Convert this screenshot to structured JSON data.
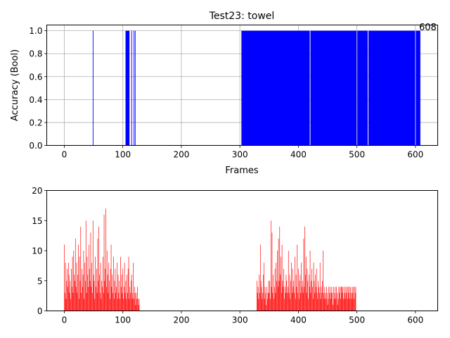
{
  "chart_data": [
    {
      "type": "bar",
      "title": "Test23: towel",
      "xlabel": "Frames",
      "ylabel": "Accuracy (Bool)",
      "xlim": [
        -30,
        638
      ],
      "ylim": [
        0,
        1.05
      ],
      "xticks": [
        0,
        100,
        200,
        300,
        400,
        500,
        600
      ],
      "yticks": [
        0.0,
        0.2,
        0.4,
        0.6,
        0.8,
        1.0
      ],
      "grid": true,
      "color": "#0000ff",
      "annotation": "608",
      "annotation_x": 608,
      "series": [
        {
          "comment": "frames where accuracy = 1 (all others are 0)",
          "ranges": [
            [
              49,
              49
            ],
            [
              105,
              111
            ],
            [
              115,
              115
            ],
            [
              119,
              119
            ],
            [
              121,
              121
            ],
            [
              303,
              419
            ],
            [
              421,
              499
            ],
            [
              501,
              518
            ],
            [
              520,
              599
            ],
            [
              601,
              608
            ]
          ]
        }
      ]
    },
    {
      "type": "bar",
      "title": "",
      "xlabel": "",
      "ylabel": "",
      "xlim": [
        -30,
        638
      ],
      "ylim": [
        0,
        20
      ],
      "xticks": [
        0,
        100,
        200,
        300,
        400,
        500,
        600
      ],
      "yticks": [
        0,
        5,
        10,
        15,
        20
      ],
      "grid": false,
      "color": "#ff0000",
      "series": [
        {
          "segments": [
            {
              "x0": 0,
              "values": [
                11,
                3,
                8,
                2,
                5,
                7,
                4,
                8,
                6,
                3,
                5,
                2,
                7,
                4,
                9,
                3,
                10,
                6,
                5,
                12,
                4,
                8,
                3,
                6,
                11,
                2,
                9,
                5,
                14,
                3,
                7,
                4,
                6,
                10,
                2,
                8,
                5,
                15,
                3,
                9,
                6,
                4,
                11,
                7,
                5,
                13,
                4,
                8,
                3,
                15,
                6,
                5,
                2,
                9,
                4,
                7,
                3,
                12,
                5,
                14,
                6,
                3,
                8,
                2,
                5,
                4,
                9,
                3,
                16,
                5,
                7,
                17,
                4,
                10,
                6,
                3,
                8,
                5,
                2,
                7,
                11,
                4,
                6,
                3,
                9,
                2,
                5,
                7,
                3,
                4,
                8,
                2,
                6,
                3,
                5,
                2,
                9,
                4,
                6,
                3,
                7,
                2,
                4,
                8,
                3,
                5,
                2,
                6,
                3,
                7,
                9,
                2,
                4,
                3,
                5,
                6,
                2,
                3,
                8,
                2,
                4,
                3,
                1,
                3,
                2,
                4,
                2,
                1,
                2
              ]
            },
            {
              "x0": 329,
              "values": [
                5,
                3,
                4,
                2,
                6,
                3,
                11,
                5,
                4,
                2,
                3,
                6,
                8,
                2,
                4,
                3,
                1,
                4,
                2,
                3,
                5,
                3,
                5,
                2,
                15,
                4,
                13,
                3,
                6,
                2,
                4,
                7,
                3,
                8,
                5,
                10,
                4,
                12,
                5,
                14,
                6,
                9,
                3,
                11,
                5,
                4,
                7,
                2,
                4,
                3,
                6,
                5,
                3,
                4,
                10,
                3,
                6,
                2,
                5,
                8,
                3,
                7,
                4,
                5,
                3,
                9,
                2,
                6,
                4,
                11,
                3,
                7,
                2,
                5,
                6,
                3,
                8,
                4,
                5,
                3,
                12,
                4,
                14,
                6,
                9,
                3,
                7,
                5,
                2,
                6,
                4,
                10,
                3,
                5,
                7,
                4,
                2,
                8,
                5,
                3,
                6,
                4,
                7,
                3,
                2,
                5,
                4,
                3,
                8,
                2,
                4,
                3,
                5,
                10,
                3,
                2,
                4,
                3,
                2,
                4,
                3,
                1,
                2,
                4,
                3,
                4,
                2,
                3,
                4,
                3,
                1,
                4,
                2,
                3,
                4,
                2,
                4,
                3,
                1,
                2,
                4,
                3,
                4,
                2,
                4,
                4,
                3,
                4,
                2,
                4,
                3,
                2,
                4,
                3,
                4,
                2,
                4,
                3,
                4,
                2,
                4,
                3,
                2,
                4,
                3,
                4,
                2,
                4,
                3,
                4
              ]
            }
          ]
        }
      ]
    }
  ]
}
